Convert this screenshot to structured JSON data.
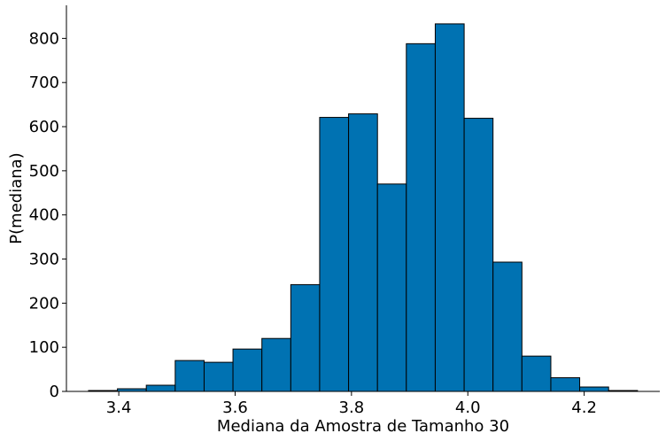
{
  "chart_data": {
    "type": "bar",
    "title": "",
    "xlabel": "Mediana da Amostra de Tamanho 30",
    "ylabel": "P(mediana)",
    "bin_edges": [
      3.348,
      3.3977,
      3.4473,
      3.497,
      3.5467,
      3.5963,
      3.646,
      3.6957,
      3.7453,
      3.795,
      3.8447,
      3.8943,
      3.944,
      3.9937,
      4.0433,
      4.093,
      4.1427,
      4.1923,
      4.242,
      4.2917
    ],
    "values": [
      2,
      6,
      14,
      70,
      66,
      96,
      120,
      242,
      621,
      629,
      470,
      788,
      833,
      619,
      293,
      80,
      31,
      10,
      2
    ],
    "xlim": [
      3.31,
      4.33
    ],
    "ylim": [
      0,
      875
    ],
    "x_ticks": [
      3.4,
      3.6,
      3.8,
      4.0,
      4.2
    ],
    "x_tick_labels": [
      "3.4",
      "3.6",
      "3.8",
      "4.0",
      "4.2"
    ],
    "y_ticks": [
      0,
      100,
      200,
      300,
      400,
      500,
      600,
      700,
      800
    ],
    "y_tick_labels": [
      "0",
      "100",
      "200",
      "300",
      "400",
      "500",
      "600",
      "700",
      "800"
    ],
    "grid": false,
    "legend": "none",
    "colors": {
      "bar_fill": "#0072b2",
      "bar_edge": "#000000",
      "axis": "#000000"
    }
  }
}
